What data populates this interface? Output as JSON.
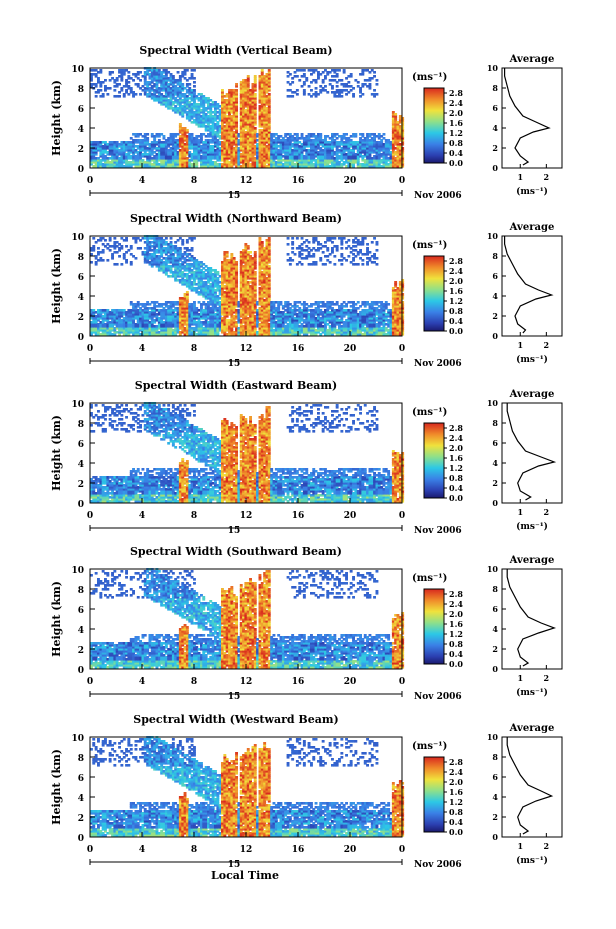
{
  "figure": {
    "xlabel": "Local Time",
    "colorbar_unit": "(ms⁻¹)",
    "avg_title": "Average",
    "avg_xlabel": "(ms⁻¹)",
    "date_label": "Nov 2006",
    "day_label": "15"
  },
  "chart_data": [
    {
      "type": "heatmap",
      "title": "Spectral Width (Vertical Beam)",
      "ylabel": "Height (km)",
      "xticks": [
        "0",
        "4",
        "8",
        "12",
        "16",
        "20",
        "0"
      ],
      "xlim": [
        0,
        24
      ],
      "yticks": [
        "0",
        "2",
        "4",
        "6",
        "8",
        "10"
      ],
      "ylim": [
        0,
        10
      ],
      "colorbar": {
        "ticks": [
          "0.0",
          "0.4",
          "0.8",
          "1.2",
          "1.6",
          "2.0",
          "2.4",
          "2.8"
        ],
        "range": [
          0,
          3.0
        ]
      },
      "average": {
        "title": "Average",
        "xticks": [
          "1",
          "2"
        ],
        "xlim": [
          0.3,
          2.6
        ],
        "profile": [
          [
            1.1,
            0.3
          ],
          [
            1.3,
            0.6
          ],
          [
            1.0,
            1.2
          ],
          [
            0.8,
            2
          ],
          [
            1.0,
            3
          ],
          [
            1.5,
            3.6
          ],
          [
            2.1,
            4.0
          ],
          [
            1.6,
            4.6
          ],
          [
            1.1,
            5.2
          ],
          [
            0.8,
            6.2
          ],
          [
            0.6,
            7.2
          ],
          [
            0.5,
            8.2
          ],
          [
            0.4,
            9.2
          ],
          [
            0.4,
            10
          ]
        ]
      }
    },
    {
      "type": "heatmap",
      "title": "Spectral Width (Northward Beam)",
      "ylabel": "Height (km)",
      "xticks": [
        "0",
        "4",
        "8",
        "12",
        "16",
        "20",
        "0"
      ],
      "xlim": [
        0,
        24
      ],
      "yticks": [
        "0",
        "2",
        "4",
        "6",
        "8",
        "10"
      ],
      "ylim": [
        0,
        10
      ],
      "colorbar": {
        "ticks": [
          "0.0",
          "0.4",
          "0.8",
          "1.2",
          "1.6",
          "2.0",
          "2.4",
          "2.8"
        ],
        "range": [
          0,
          3.0
        ]
      },
      "average": {
        "title": "Average",
        "xticks": [
          "1",
          "2"
        ],
        "xlim": [
          0.3,
          2.6
        ],
        "profile": [
          [
            1.1,
            0.3
          ],
          [
            1.2,
            0.6
          ],
          [
            0.9,
            1.2
          ],
          [
            0.8,
            2
          ],
          [
            1.0,
            3
          ],
          [
            1.6,
            3.7
          ],
          [
            2.2,
            4.1
          ],
          [
            1.7,
            4.6
          ],
          [
            1.2,
            5.2
          ],
          [
            0.9,
            6.2
          ],
          [
            0.7,
            7.2
          ],
          [
            0.5,
            8.2
          ],
          [
            0.4,
            9.2
          ],
          [
            0.4,
            10
          ]
        ]
      }
    },
    {
      "type": "heatmap",
      "title": "Spectral Width (Eastward Beam)",
      "ylabel": "Height (km)",
      "xticks": [
        "0",
        "4",
        "8",
        "12",
        "16",
        "20",
        "0"
      ],
      "xlim": [
        0,
        24
      ],
      "yticks": [
        "0",
        "2",
        "4",
        "6",
        "8",
        "10"
      ],
      "ylim": [
        0,
        10
      ],
      "colorbar": {
        "ticks": [
          "0.0",
          "0.4",
          "0.8",
          "1.2",
          "1.6",
          "2.0",
          "2.4",
          "2.8"
        ],
        "range": [
          0,
          3.0
        ]
      },
      "average": {
        "title": "Average",
        "xticks": [
          "1",
          "2"
        ],
        "xlim": [
          0.3,
          2.6
        ],
        "profile": [
          [
            1.2,
            0.3
          ],
          [
            1.4,
            0.6
          ],
          [
            1.0,
            1.2
          ],
          [
            0.9,
            2
          ],
          [
            1.1,
            3
          ],
          [
            1.7,
            3.7
          ],
          [
            2.3,
            4.1
          ],
          [
            1.8,
            4.6
          ],
          [
            1.2,
            5.2
          ],
          [
            0.9,
            6.2
          ],
          [
            0.7,
            7.2
          ],
          [
            0.6,
            8.2
          ],
          [
            0.5,
            9.2
          ],
          [
            0.5,
            10
          ]
        ]
      }
    },
    {
      "type": "heatmap",
      "title": "Spectral Width (Southward Beam)",
      "ylabel": "Height (km)",
      "xticks": [
        "0",
        "4",
        "8",
        "12",
        "16",
        "20",
        "0"
      ],
      "xlim": [
        0,
        24
      ],
      "yticks": [
        "0",
        "2",
        "4",
        "6",
        "8",
        "10"
      ],
      "ylim": [
        0,
        10
      ],
      "colorbar": {
        "ticks": [
          "0.0",
          "0.4",
          "0.8",
          "1.2",
          "1.6",
          "2.0",
          "2.4",
          "2.8"
        ],
        "range": [
          0,
          3.0
        ]
      },
      "average": {
        "title": "Average",
        "xticks": [
          "1",
          "2"
        ],
        "xlim": [
          0.3,
          2.6
        ],
        "profile": [
          [
            1.1,
            0.3
          ],
          [
            1.3,
            0.6
          ],
          [
            1.0,
            1.2
          ],
          [
            0.9,
            2
          ],
          [
            1.1,
            3
          ],
          [
            1.7,
            3.6
          ],
          [
            2.3,
            4.1
          ],
          [
            1.8,
            4.6
          ],
          [
            1.3,
            5.2
          ],
          [
            1.0,
            6.2
          ],
          [
            0.8,
            7.2
          ],
          [
            0.6,
            8.2
          ],
          [
            0.5,
            9.2
          ],
          [
            0.5,
            10
          ]
        ]
      }
    },
    {
      "type": "heatmap",
      "title": "Spectral Width (Westward Beam)",
      "ylabel": "Height (km)",
      "xticks": [
        "0",
        "4",
        "8",
        "12",
        "16",
        "20",
        "0"
      ],
      "xlim": [
        0,
        24
      ],
      "yticks": [
        "0",
        "2",
        "4",
        "6",
        "8",
        "10"
      ],
      "ylim": [
        0,
        10
      ],
      "colorbar": {
        "ticks": [
          "0.0",
          "0.4",
          "0.8",
          "1.2",
          "1.6",
          "2.0",
          "2.4",
          "2.8"
        ],
        "range": [
          0,
          3.0
        ]
      },
      "average": {
        "title": "Average",
        "xticks": [
          "1",
          "2"
        ],
        "xlim": [
          0.3,
          2.6
        ],
        "profile": [
          [
            1.1,
            0.3
          ],
          [
            1.3,
            0.6
          ],
          [
            1.0,
            1.2
          ],
          [
            0.9,
            2
          ],
          [
            1.1,
            3
          ],
          [
            1.6,
            3.6
          ],
          [
            2.2,
            4.1
          ],
          [
            1.8,
            4.6
          ],
          [
            1.3,
            5.2
          ],
          [
            1.0,
            6.2
          ],
          [
            0.8,
            7.2
          ],
          [
            0.6,
            8.2
          ],
          [
            0.5,
            9.2
          ],
          [
            0.5,
            10
          ]
        ]
      }
    }
  ]
}
